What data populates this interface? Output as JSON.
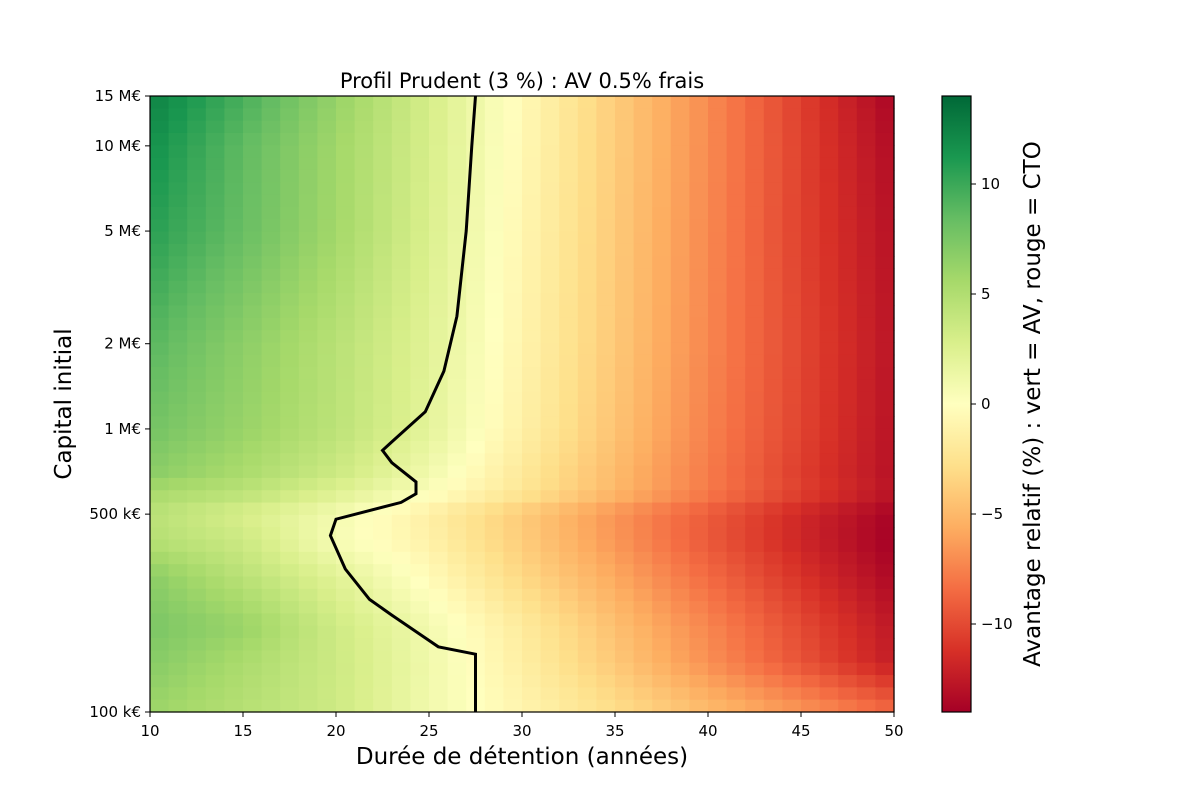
{
  "chart_data": {
    "type": "heatmap",
    "title": "Profil Prudent (3 %) : AV 0.5% frais",
    "xlabel": "Durée de détention (années)",
    "ylabel": "Capital initial",
    "colorbar_label": "Avantage relatif (%) : vert = AV, rouge = CTO",
    "colormap": "RdYlGn",
    "colormap_stops": [
      "#a50026",
      "#d73027",
      "#f46d43",
      "#fdae61",
      "#fee08b",
      "#ffffbf",
      "#d9ef8b",
      "#a6d96a",
      "#66bd63",
      "#1a9850",
      "#006837"
    ],
    "xlim": [
      10,
      50
    ],
    "ylim": [
      100000,
      15000000
    ],
    "y_scale": "log",
    "clim": [
      -14,
      14
    ],
    "x_ticks": [
      {
        "value": 10,
        "label": "10"
      },
      {
        "value": 15,
        "label": "15"
      },
      {
        "value": 20,
        "label": "20"
      },
      {
        "value": 25,
        "label": "25"
      },
      {
        "value": 30,
        "label": "30"
      },
      {
        "value": 35,
        "label": "35"
      },
      {
        "value": 40,
        "label": "40"
      },
      {
        "value": 45,
        "label": "45"
      },
      {
        "value": 50,
        "label": "50"
      }
    ],
    "y_ticks": [
      {
        "value": 100000,
        "label": "100 k€"
      },
      {
        "value": 500000,
        "label": "500 k€"
      },
      {
        "value": 1000000,
        "label": "1 M€"
      },
      {
        "value": 2000000,
        "label": "2 M€"
      },
      {
        "value": 5000000,
        "label": "5 M€"
      },
      {
        "value": 10000000,
        "label": "10 M€"
      },
      {
        "value": 15000000,
        "label": "15 M€"
      }
    ],
    "colorbar_ticks": [
      {
        "value": 10,
        "label": "10"
      },
      {
        "value": 5,
        "label": "5"
      },
      {
        "value": 0,
        "label": "0"
      },
      {
        "value": -5,
        "label": "−5"
      },
      {
        "value": -10,
        "label": "−10"
      }
    ],
    "grid": false,
    "x_values": [
      10,
      15,
      20,
      25,
      30,
      35,
      40,
      45,
      50
    ],
    "y_values": [
      100000,
      150000,
      200000,
      300000,
      400000,
      500000,
      600000,
      700000,
      1000000,
      2000000,
      5000000,
      10000000,
      15000000
    ],
    "z_values": [
      [
        6.0,
        4.7,
        3.4,
        1.0,
        -0.9,
        -2.8,
        -4.8,
        -6.6,
        -8.6
      ],
      [
        7.0,
        5.3,
        3.5,
        1.1,
        -1.5,
        -4.1,
        -6.9,
        -9.6,
        -12.3
      ],
      [
        7.5,
        6.2,
        3.4,
        0.9,
        -1.8,
        -4.6,
        -7.3,
        -10.0,
        -12.6
      ],
      [
        6.8,
        4.5,
        2.2,
        -0.4,
        -3.2,
        -5.8,
        -8.5,
        -11.1,
        -13.5
      ],
      [
        4.8,
        3.5,
        0.6,
        -1.2,
        -3.9,
        -6.6,
        -9.3,
        -11.8,
        -14.0
      ],
      [
        4.5,
        2.8,
        0.9,
        -1.4,
        -4.0,
        -6.7,
        -9.2,
        -11.7,
        -13.8
      ],
      [
        5.5,
        4.5,
        2.5,
        0.3,
        -2.2,
        -5.0,
        -7.8,
        -10.4,
        -12.8
      ],
      [
        6.8,
        5.3,
        3.5,
        1.0,
        -2.0,
        -4.9,
        -7.8,
        -10.6,
        -13.0
      ],
      [
        7.8,
        6.2,
        4.4,
        2.0,
        -1.3,
        -4.4,
        -7.5,
        -10.3,
        -12.9
      ],
      [
        8.9,
        6.7,
        4.6,
        2.2,
        -1.0,
        -4.1,
        -7.3,
        -10.2,
        -12.8
      ],
      [
        10.7,
        8.3,
        5.7,
        2.7,
        -0.8,
        -4.0,
        -7.2,
        -10.4,
        -13.0
      ],
      [
        11.7,
        8.6,
        5.8,
        2.9,
        -0.6,
        -3.9,
        -7.1,
        -10.4,
        -13.3
      ],
      [
        12.5,
        9.5,
        6.3,
        3.0,
        -0.5,
        -3.9,
        -7.1,
        -10.5,
        -13.7
      ]
    ],
    "contour_level": 0,
    "contour_points": [
      {
        "x": 27.5,
        "y": 100000
      },
      {
        "x": 27.5,
        "y": 160000
      },
      {
        "x": 25.5,
        "y": 170000
      },
      {
        "x": 23.0,
        "y": 220000
      },
      {
        "x": 21.8,
        "y": 250000
      },
      {
        "x": 20.5,
        "y": 320000
      },
      {
        "x": 19.7,
        "y": 420000
      },
      {
        "x": 20.0,
        "y": 480000
      },
      {
        "x": 23.5,
        "y": 550000
      },
      {
        "x": 24.3,
        "y": 590000
      },
      {
        "x": 24.3,
        "y": 650000
      },
      {
        "x": 23.0,
        "y": 760000
      },
      {
        "x": 22.5,
        "y": 840000
      },
      {
        "x": 23.0,
        "y": 900000
      },
      {
        "x": 24.8,
        "y": 1150000
      },
      {
        "x": 25.8,
        "y": 1600000
      },
      {
        "x": 26.5,
        "y": 2500000
      },
      {
        "x": 27.0,
        "y": 5000000
      },
      {
        "x": 27.3,
        "y": 10000000
      },
      {
        "x": 27.5,
        "y": 15000000
      }
    ]
  }
}
